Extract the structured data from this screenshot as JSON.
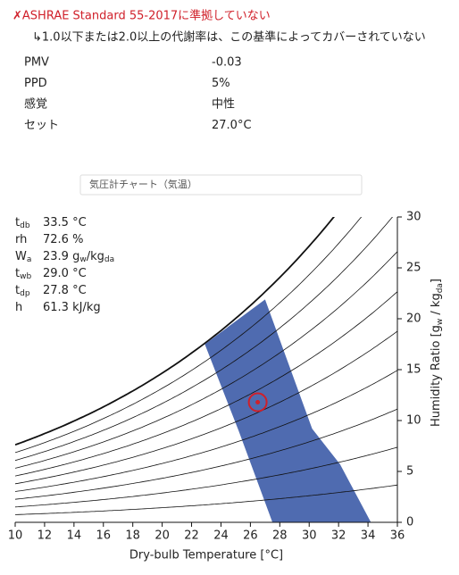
{
  "header": {
    "status": "✗ASHRAE Standard 55-2017に準拠していない",
    "note": "↳1.0以下または2.0以上の代謝率は、この基準によってカバーされていない"
  },
  "results": [
    [
      "PMV",
      "-0.03"
    ],
    [
      "PPD",
      "5%"
    ],
    [
      "感覚",
      "中性"
    ],
    [
      "セット",
      "27.0°C"
    ]
  ],
  "dropdown": "気圧計チャート（気温）",
  "readouts": [
    {
      "symbol": "t",
      "sub": "db",
      "value": [
        "33.5 °C"
      ]
    },
    {
      "symbol": "rh",
      "sub": "",
      "value": [
        "72.6 %"
      ]
    },
    {
      "symbol": "W",
      "sub": "a",
      "value": [
        "23.9 g",
        "w",
        "/kg",
        "da"
      ]
    },
    {
      "symbol": "t",
      "sub": "wb",
      "value": [
        "29.0 °C"
      ]
    },
    {
      "symbol": "t",
      "sub": "dp",
      "value": [
        "27.8 °C"
      ]
    },
    {
      "symbol": "h",
      "sub": "",
      "value": [
        "61.3 kJ/kg"
      ]
    }
  ],
  "chart_data": {
    "type": "psychrometric",
    "xlabel": "Dry-bulb Temperature [°C]",
    "y2label": [
      "Humidity Ratio [g",
      "w",
      " / kg",
      "da",
      "]"
    ],
    "xlim": [
      10,
      36
    ],
    "xticks": [
      10,
      12,
      14,
      16,
      18,
      20,
      22,
      24,
      26,
      28,
      30,
      32,
      34,
      36
    ],
    "y2lim": [
      0,
      30
    ],
    "y2ticks": [
      0,
      5,
      10,
      15,
      20,
      25,
      30
    ],
    "rh_curves": [
      0.1,
      0.2,
      0.3,
      0.4,
      0.5,
      0.6,
      0.7,
      0.8,
      0.9,
      1.0
    ],
    "zone": {
      "color": "#4f6bb0",
      "x": [
        22.9,
        27.0,
        30.2,
        32.1,
        34.2,
        27.5,
        25.2
      ],
      "y": [
        17.5,
        21.9,
        9.2,
        5.7,
        0,
        0,
        9
      ]
    },
    "point": {
      "x": 26.5,
      "y": 11.8,
      "color": "#d0202a"
    }
  }
}
